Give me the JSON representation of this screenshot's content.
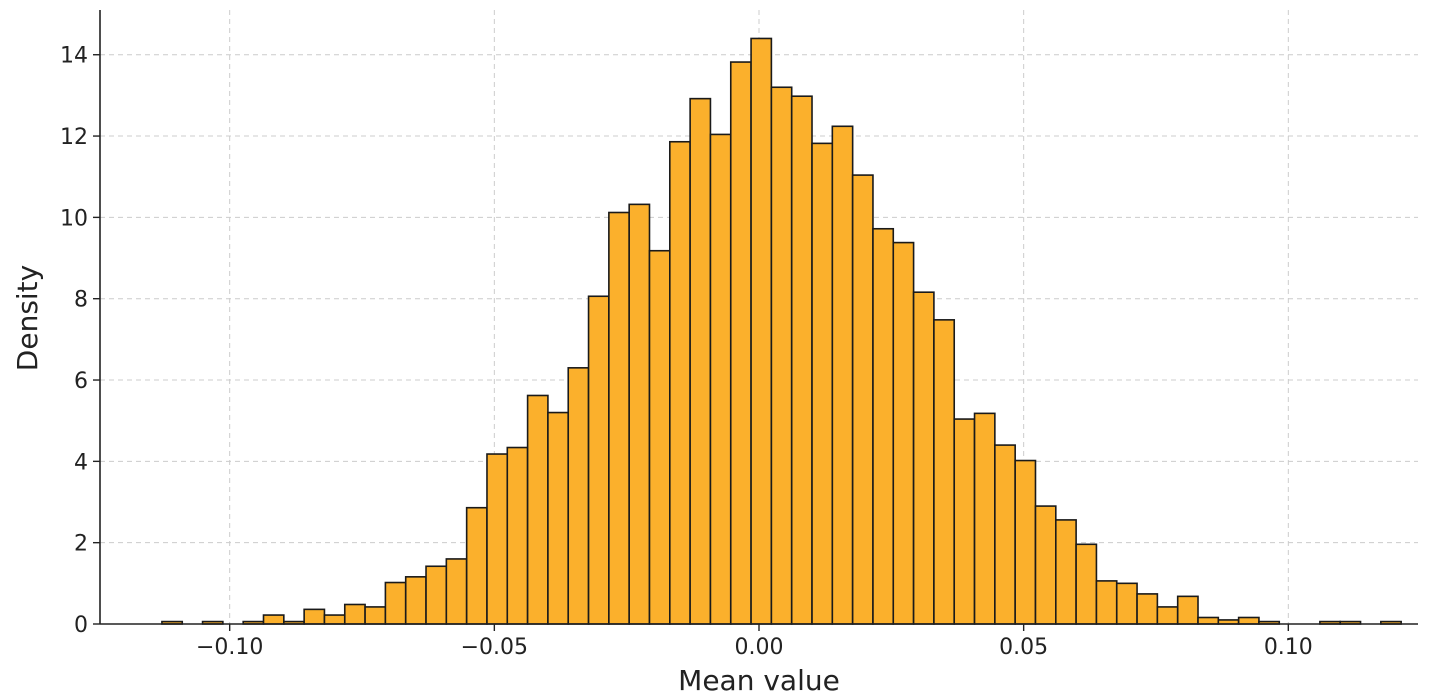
{
  "chart_data": {
    "type": "bar",
    "title": "",
    "xlabel": "Mean value",
    "ylabel": "Density",
    "xlim": [
      -0.1245,
      0.1245
    ],
    "ylim": [
      0,
      15.1
    ],
    "xticks": [
      -0.1,
      -0.05,
      0.0,
      0.05,
      0.1
    ],
    "xtick_labels": [
      "−0.10",
      "−0.05",
      "0.00",
      "0.05",
      "0.10"
    ],
    "yticks": [
      0,
      2,
      4,
      6,
      8,
      10,
      12,
      14
    ],
    "ytick_labels": [
      "0",
      "2",
      "4",
      "6",
      "8",
      "10",
      "12",
      "14"
    ],
    "grid": true,
    "bar_color": "#fbb02c",
    "edge_color": "#1a1a1a",
    "bin_width": 0.003838,
    "bin_start": -0.1128,
    "values": [
      0.06,
      0.0,
      0.06,
      0.0,
      0.06,
      0.22,
      0.06,
      0.36,
      0.22,
      0.48,
      0.42,
      1.02,
      1.16,
      1.42,
      1.6,
      2.86,
      4.18,
      4.34,
      5.62,
      5.2,
      6.3,
      8.06,
      10.12,
      10.32,
      9.18,
      11.86,
      12.92,
      12.04,
      13.82,
      14.4,
      13.2,
      12.98,
      11.82,
      12.24,
      11.04,
      9.72,
      9.38,
      8.16,
      7.48,
      5.04,
      5.18,
      4.4,
      4.02,
      2.9,
      2.56,
      1.96,
      1.06,
      1.0,
      0.74,
      0.42,
      0.68,
      0.16,
      0.1,
      0.16,
      0.06,
      0.0,
      0.0,
      0.06,
      0.06,
      0.0,
      0.06
    ]
  }
}
